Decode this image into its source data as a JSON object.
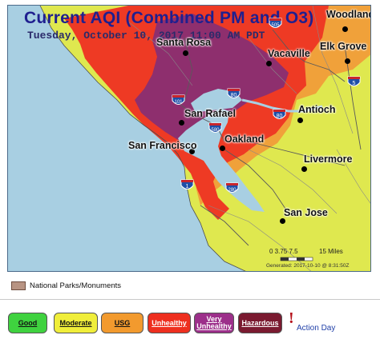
{
  "map": {
    "title": "Current AQI (Combined PM and O3)",
    "subtitle": "Tuesday, October 10, 2017 11:00 AM PDT",
    "cities": [
      {
        "name": "Woodland"
      },
      {
        "name": "Santa Rosa"
      },
      {
        "name": "Vacaville"
      },
      {
        "name": "Elk Grove"
      },
      {
        "name": "San Rafael"
      },
      {
        "name": "Antioch"
      },
      {
        "name": "Oakland"
      },
      {
        "name": "San Francisco"
      },
      {
        "name": "Livermore"
      },
      {
        "name": "San Jose"
      }
    ],
    "highways": [
      "505",
      "80",
      "5",
      "101",
      "580",
      "1",
      "280",
      "80"
    ],
    "scale": {
      "ticks": "0 3.75 7.5",
      "unit": "15 Miles"
    },
    "generated": "Generated: 2017-10-10 @ 8:31:50Z"
  },
  "parks_legend": {
    "label": "National Parks/Monuments",
    "color": "#b89483"
  },
  "aqi_legend": [
    {
      "label": "Good",
      "color": "#3fd23f"
    },
    {
      "label": "Moderate",
      "color": "#f0ee3a"
    },
    {
      "label": "USG",
      "color": "#f29a2e"
    },
    {
      "label": "Unhealthy",
      "color": "#ee2f1f"
    },
    {
      "label": "Very Unhealthy",
      "color": "#9c2f8a"
    },
    {
      "label": "Hazardous",
      "color": "#7a1a30"
    }
  ],
  "action_day": {
    "symbol": "!",
    "label": "Action Day"
  },
  "colors": {
    "water": "#a8cfe2",
    "land_good": "#d9e652",
    "moderate": "#e3eb55",
    "usg": "#f0a13a",
    "unhealthy": "#ee3a24",
    "very_unhealthy": "#8e2f6e"
  }
}
